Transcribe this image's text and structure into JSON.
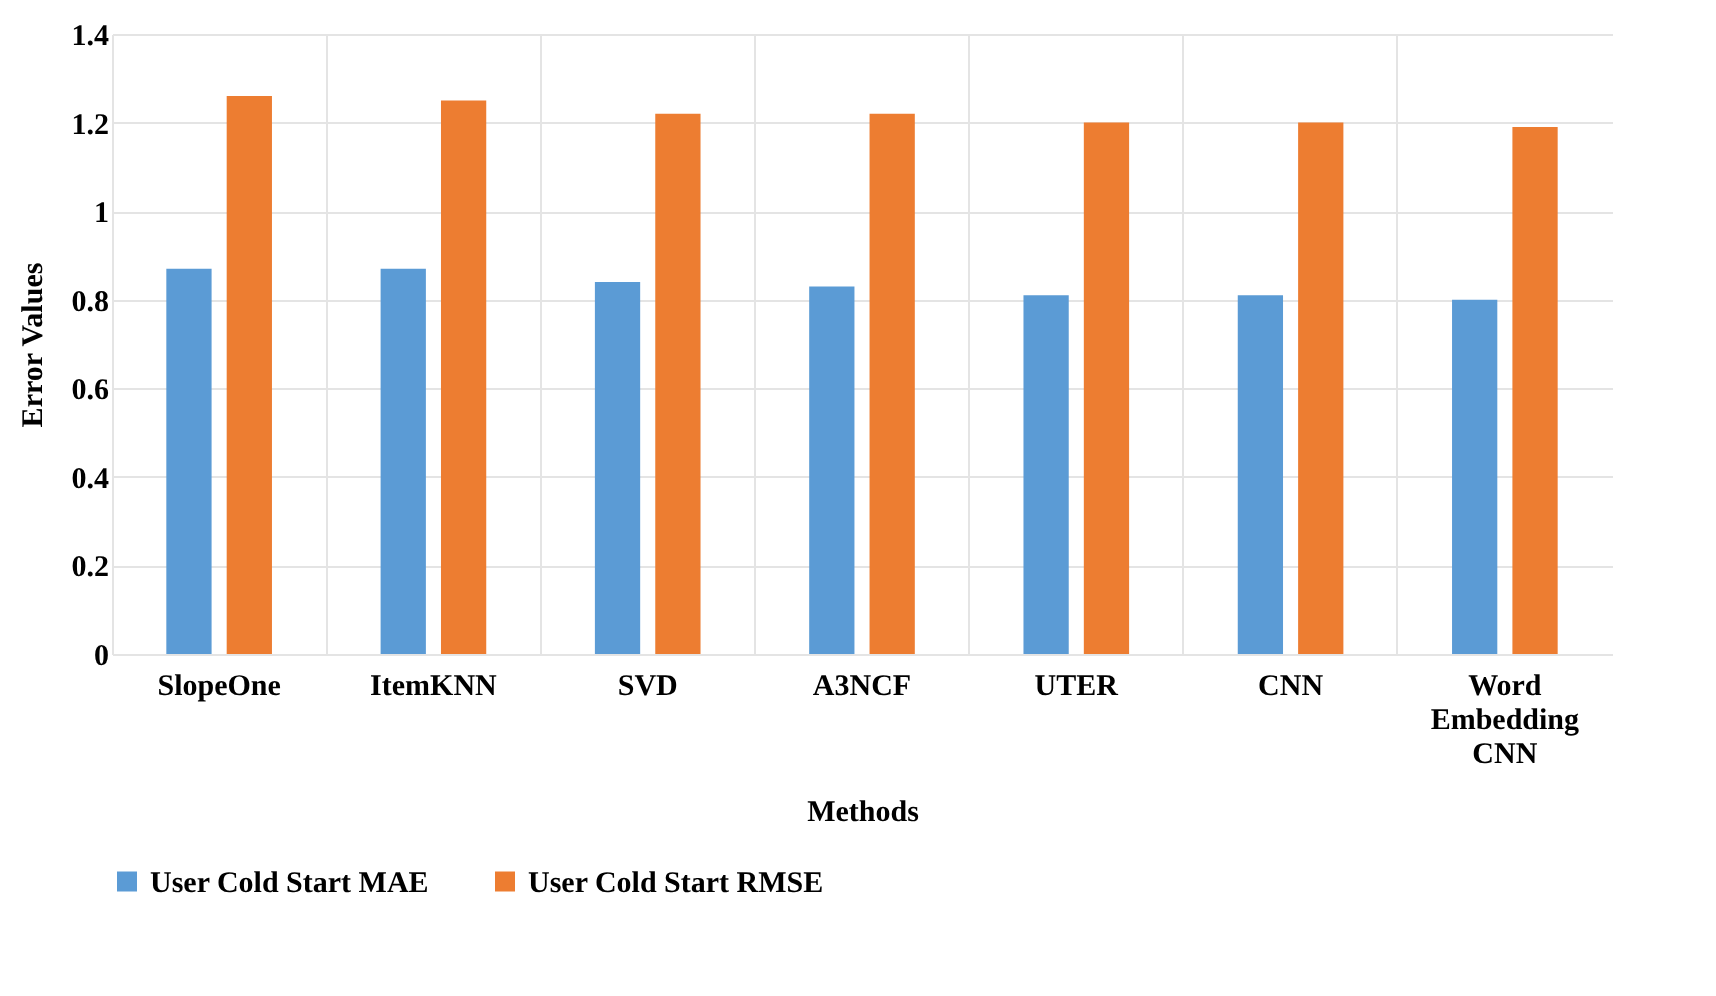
{
  "chart_data": {
    "type": "bar",
    "xlabel": "Methods",
    "ylabel": "Error Values",
    "categories": [
      "SlopeOne",
      "ItemKNN",
      "SVD",
      "A3NCF",
      "UTER",
      "CNN",
      "Word Embedding CNN"
    ],
    "series": [
      {
        "name": "User Cold Start MAE",
        "color": "#5b9bd5",
        "values": [
          0.87,
          0.87,
          0.84,
          0.83,
          0.81,
          0.81,
          0.8
        ]
      },
      {
        "name": "User Cold Start RMSE",
        "color": "#ed7d31",
        "values": [
          1.26,
          1.25,
          1.22,
          1.22,
          1.2,
          1.2,
          1.19
        ]
      }
    ],
    "ylim": [
      0,
      1.4
    ],
    "yticks": [
      0,
      0.2,
      0.4,
      0.6,
      0.8,
      1,
      1.2,
      1.4
    ],
    "grid": true,
    "legend": "bottom"
  }
}
